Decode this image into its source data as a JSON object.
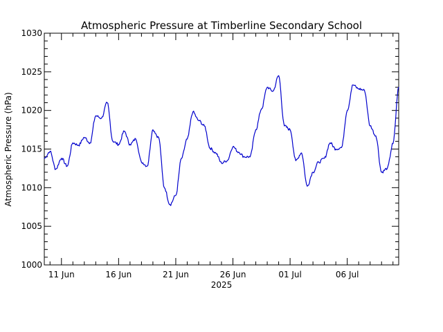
{
  "chart_data": {
    "type": "line",
    "title": "Atmospheric Pressure at Timberline Secondary School",
    "ylabel": "Atmospheric Pressure (hPa)",
    "xlabel": "2025",
    "ylim": [
      1000,
      1030
    ],
    "xlim": [
      "2025-06-09T12:00",
      "2025-07-10T12:00"
    ],
    "yticks": [
      1000,
      1005,
      1010,
      1015,
      1020,
      1025,
      1030
    ],
    "xticks": [
      {
        "date": "2025-06-11",
        "label": "11 Jun"
      },
      {
        "date": "2025-06-16",
        "label": "16 Jun"
      },
      {
        "date": "2025-06-21",
        "label": "21 Jun"
      },
      {
        "date": "2025-06-26",
        "label": "26 Jun"
      },
      {
        "date": "2025-07-01",
        "label": "01 Jul"
      },
      {
        "date": "2025-07-06",
        "label": "06 Jul"
      }
    ],
    "grid": false,
    "line_color": "#0000cc",
    "series": [
      {
        "x": [
          "2025-06-09T12:00",
          "2025-06-10T00:00",
          "2025-06-10T12:00",
          "2025-06-11T00:00",
          "2025-06-11T12:00",
          "2025-06-12T00:00",
          "2025-06-12T12:00",
          "2025-06-13T00:00",
          "2025-06-13T12:00",
          "2025-06-14T00:00",
          "2025-06-14T12:00",
          "2025-06-15T00:00",
          "2025-06-15T12:00",
          "2025-06-16T00:00",
          "2025-06-16T12:00",
          "2025-06-17T00:00",
          "2025-06-17T12:00",
          "2025-06-18T00:00",
          "2025-06-18T12:00",
          "2025-06-19T00:00",
          "2025-06-19T12:00",
          "2025-06-20T00:00",
          "2025-06-20T12:00",
          "2025-06-21T00:00",
          "2025-06-21T12:00",
          "2025-06-22T00:00",
          "2025-06-22T12:00",
          "2025-06-23T00:00",
          "2025-06-23T12:00",
          "2025-06-24T00:00",
          "2025-06-24T12:00",
          "2025-06-25T00:00",
          "2025-06-25T12:00",
          "2025-06-26T00:00",
          "2025-06-26T12:00",
          "2025-06-27T00:00",
          "2025-06-27T12:00",
          "2025-06-28T00:00",
          "2025-06-28T12:00",
          "2025-06-29T00:00",
          "2025-06-29T12:00",
          "2025-06-30T00:00",
          "2025-06-30T12:00",
          "2025-07-01T00:00",
          "2025-07-01T12:00",
          "2025-07-02T00:00",
          "2025-07-02T12:00",
          "2025-07-03T00:00",
          "2025-07-03T12:00",
          "2025-07-04T00:00",
          "2025-07-04T12:00",
          "2025-07-05T00:00",
          "2025-07-05T12:00",
          "2025-07-06T00:00",
          "2025-07-06T12:00",
          "2025-07-07T00:00",
          "2025-07-07T12:00",
          "2025-07-08T00:00",
          "2025-07-08T12:00",
          "2025-07-09T00:00",
          "2025-07-09T12:00",
          "2025-07-10T00:00",
          "2025-07-10T12:00"
        ],
        "y": [
          1013.8,
          1014.7,
          1012.4,
          1013.8,
          1012.8,
          1015.8,
          1015.5,
          1016.5,
          1015.8,
          1019.3,
          1019.0,
          1021.0,
          1016.0,
          1015.6,
          1017.3,
          1015.6,
          1016.3,
          1013.3,
          1012.8,
          1017.5,
          1016.5,
          1010.0,
          1007.8,
          1009.0,
          1013.8,
          1016.3,
          1019.8,
          1018.7,
          1018.0,
          1015.1,
          1014.5,
          1013.2,
          1013.5,
          1015.3,
          1014.6,
          1014.0,
          1014.0,
          1017.5,
          1020.2,
          1023.0,
          1022.5,
          1024.5,
          1018.0,
          1017.5,
          1013.5,
          1014.5,
          1010.2,
          1012.0,
          1013.3,
          1013.8,
          1015.8,
          1015.0,
          1015.2,
          1020.0,
          1023.3,
          1022.8,
          1022.6,
          1018.0,
          1016.7,
          1012.0,
          1012.5,
          1015.7,
          1023.0
        ]
      }
    ]
  }
}
